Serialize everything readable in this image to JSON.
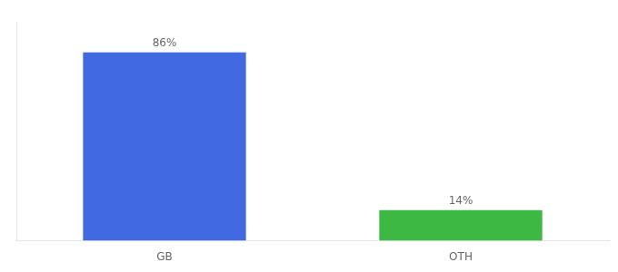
{
  "chart_data": {
    "type": "bar",
    "categories": [
      "GB",
      "OTH"
    ],
    "values": [
      86,
      14
    ],
    "colors": [
      "#4169E1",
      "#3CB843"
    ],
    "value_labels": [
      "86%",
      "14%"
    ],
    "data_labels": true,
    "ylim": [
      0,
      100
    ],
    "tick_labels": "x",
    "grid": false
  }
}
